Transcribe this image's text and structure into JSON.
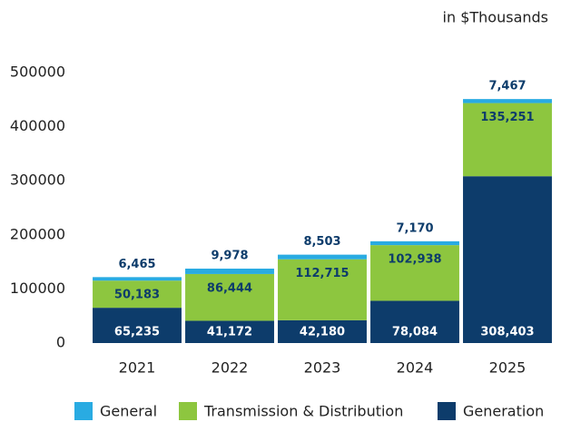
{
  "chart_data": {
    "type": "stacked_bar",
    "unit_label": "in $Thousands",
    "categories": [
      "2021",
      "2022",
      "2023",
      "2024",
      "2025"
    ],
    "series": [
      {
        "name": "General",
        "color": "#29abe2",
        "values": [
          6465,
          9978,
          8503,
          7170,
          7467
        ],
        "value_labels": [
          "6,465",
          "9,978",
          "8,503",
          "7,170",
          "7,467"
        ]
      },
      {
        "name": "Transmission & Distribution",
        "color": "#8dc63f",
        "values": [
          50183,
          86444,
          112715,
          102938,
          135251
        ],
        "value_labels": [
          "50,183",
          "86,444",
          "112,715",
          "102,938",
          "135,251"
        ]
      },
      {
        "name": "Generation",
        "color": "#0d3c6b",
        "values": [
          65235,
          41172,
          42180,
          78084,
          308403
        ],
        "value_labels": [
          "65,235",
          "41,172",
          "42,180",
          "78,084",
          "308,403"
        ]
      }
    ],
    "ylim": [
      0,
      500000
    ],
    "yticks": [
      0,
      100000,
      200000,
      300000,
      400000,
      500000
    ],
    "grid": false
  }
}
